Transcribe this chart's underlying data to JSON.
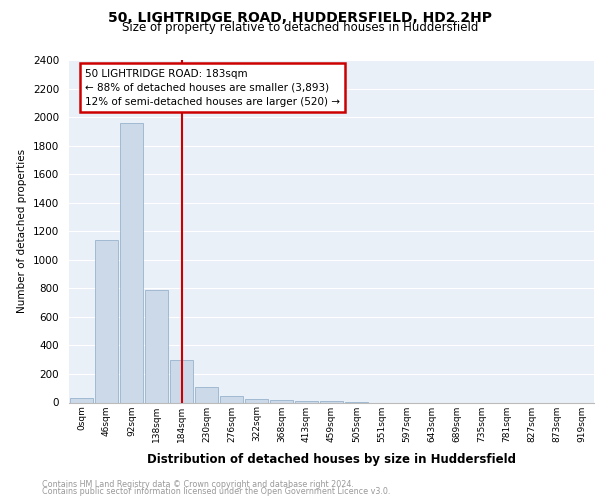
{
  "title": "50, LIGHTRIDGE ROAD, HUDDERSFIELD, HD2 2HP",
  "subtitle": "Size of property relative to detached houses in Huddersfield",
  "xlabel": "Distribution of detached houses by size in Huddersfield",
  "ylabel": "Number of detached properties",
  "bar_labels": [
    "0sqm",
    "46sqm",
    "92sqm",
    "138sqm",
    "184sqm",
    "230sqm",
    "276sqm",
    "322sqm",
    "368sqm",
    "413sqm",
    "459sqm",
    "505sqm",
    "551sqm",
    "597sqm",
    "643sqm",
    "689sqm",
    "735sqm",
    "781sqm",
    "827sqm",
    "873sqm",
    "919sqm"
  ],
  "bar_values": [
    35,
    1140,
    1960,
    790,
    300,
    110,
    48,
    28,
    18,
    12,
    8,
    5,
    0,
    0,
    0,
    0,
    0,
    0,
    0,
    0,
    0
  ],
  "bar_color": "#ccd9e8",
  "bar_edge_color": "#8aaac8",
  "vline_color": "#cc0000",
  "annotation_text": "50 LIGHTRIDGE ROAD: 183sqm\n← 88% of detached houses are smaller (3,893)\n12% of semi-detached houses are larger (520) →",
  "annotation_box_color": "#ffffff",
  "annotation_box_edge_color": "#cc0000",
  "ylim": [
    0,
    2400
  ],
  "yticks": [
    0,
    200,
    400,
    600,
    800,
    1000,
    1200,
    1400,
    1600,
    1800,
    2000,
    2200,
    2400
  ],
  "background_color": "#eaf0f8",
  "grid_color": "#ffffff",
  "footer_line1": "Contains HM Land Registry data © Crown copyright and database right 2024.",
  "footer_line2": "Contains public sector information licensed under the Open Government Licence v3.0."
}
